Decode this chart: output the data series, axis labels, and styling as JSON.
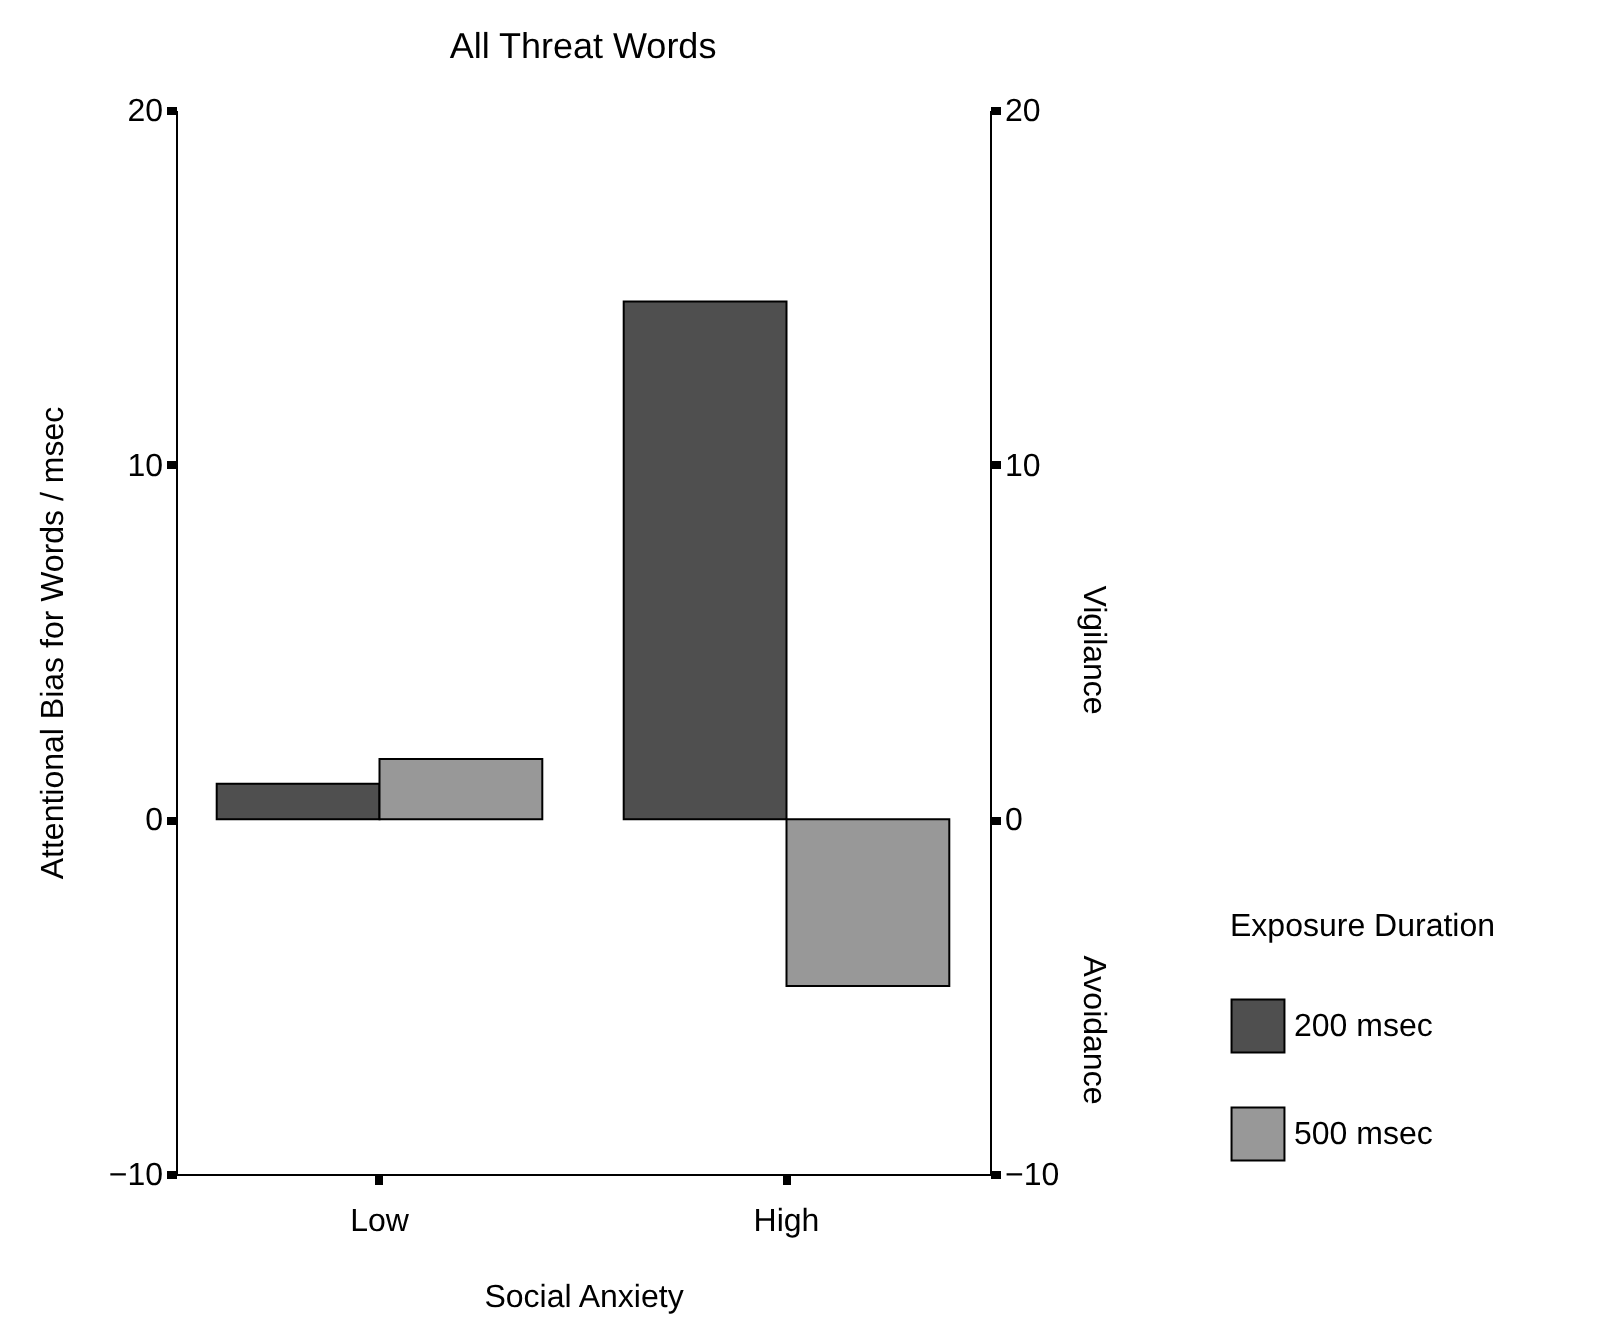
{
  "chart_data": {
    "type": "bar",
    "title": "All Threat Words",
    "xlabel": "Social Anxiety",
    "ylabel": "Attentional Bias for Words / msec",
    "legend_title": "Exposure Duration",
    "legend": "right",
    "grid": false,
    "categories": [
      "Low",
      "High"
    ],
    "series": [
      {
        "name": "200 msec",
        "color": "#4f4f4f",
        "values": [
          1.0,
          14.6
        ]
      },
      {
        "name": "500 msec",
        "color": "#989898",
        "values": [
          1.7,
          -4.7
        ]
      }
    ],
    "ylim": [
      -10,
      20
    ],
    "yticks": [
      -10,
      0,
      10,
      20
    ],
    "y2lim": [
      -10,
      20
    ],
    "y2ticks": [
      -10,
      0,
      10,
      20
    ],
    "annotations": [
      "Vigilance",
      "Avoidance"
    ]
  }
}
